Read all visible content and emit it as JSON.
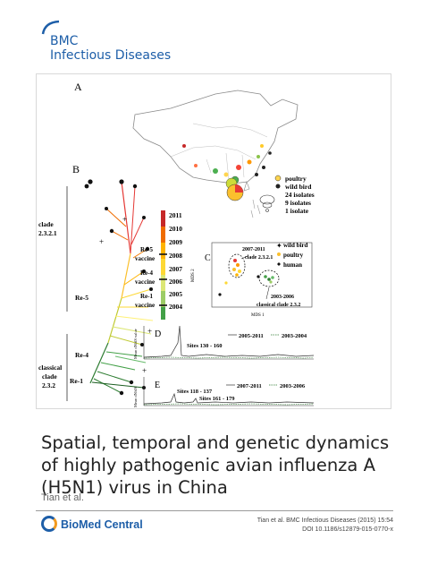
{
  "journal": {
    "line1": "BMC",
    "line2": "Infectious Diseases"
  },
  "figure": {
    "panels": {
      "a": "A",
      "b": "B",
      "c": "C",
      "d": "D",
      "e": "E"
    },
    "map_legend": [
      "poultry",
      "wild bird",
      "24 isolates",
      "9 isolates",
      "1 isolate"
    ],
    "years": [
      "2011",
      "2010",
      "2009",
      "2008",
      "2007",
      "2006",
      "2005",
      "2004"
    ],
    "vaccines": [
      {
        "name": "Re-5",
        "label": "vaccine"
      },
      {
        "name": "Re-4",
        "label": "vaccine"
      },
      {
        "name": "Re-1",
        "label": "vaccine"
      }
    ],
    "tree_labels": {
      "clade_a": [
        "clade",
        "2.3.2.1"
      ],
      "clade_b": [
        "classical",
        "clade",
        "2.3.2"
      ],
      "re5": "Re-5",
      "re4": "Re-4",
      "re1": "Re-1"
    },
    "mds": {
      "legend": [
        "wild bird",
        "poultry",
        "human"
      ],
      "cluster_a": [
        "2007-2011",
        "clade 2.3.2.1"
      ],
      "cluster_b": [
        "2003-2006",
        "classical clade 2.3.2"
      ],
      "xlabel": "MDS 1",
      "ylabel": "MDS 2"
    },
    "panel_d": {
      "legend_a": "2005-2011",
      "legend_b": "2003-2004",
      "annotation": "Sites 130 - 160"
    },
    "panel_e": {
      "legend_a": "2007-2011",
      "legend_b": "2003-2006",
      "annotation_a": "Sites 118 - 137",
      "annotation_b": "Sites 161 - 179",
      "xlabel": "position"
    },
    "y_axis_label": "Mean dN/dS value"
  },
  "title": "Spatial, temporal and genetic dynamics of highly pathogenic avian influenza A (H5N1) virus in China",
  "authors": "Tian et al.",
  "publisher": "BioMed Central",
  "citation": {
    "line1": "Tian et al. BMC Infectious Diseases (2015) 15:54",
    "line2": "DOI 10.1186/s12879-015-0770-x"
  },
  "colors": {
    "brand_blue": "#1d5ea8",
    "brand_orange": "#f39a1e"
  }
}
